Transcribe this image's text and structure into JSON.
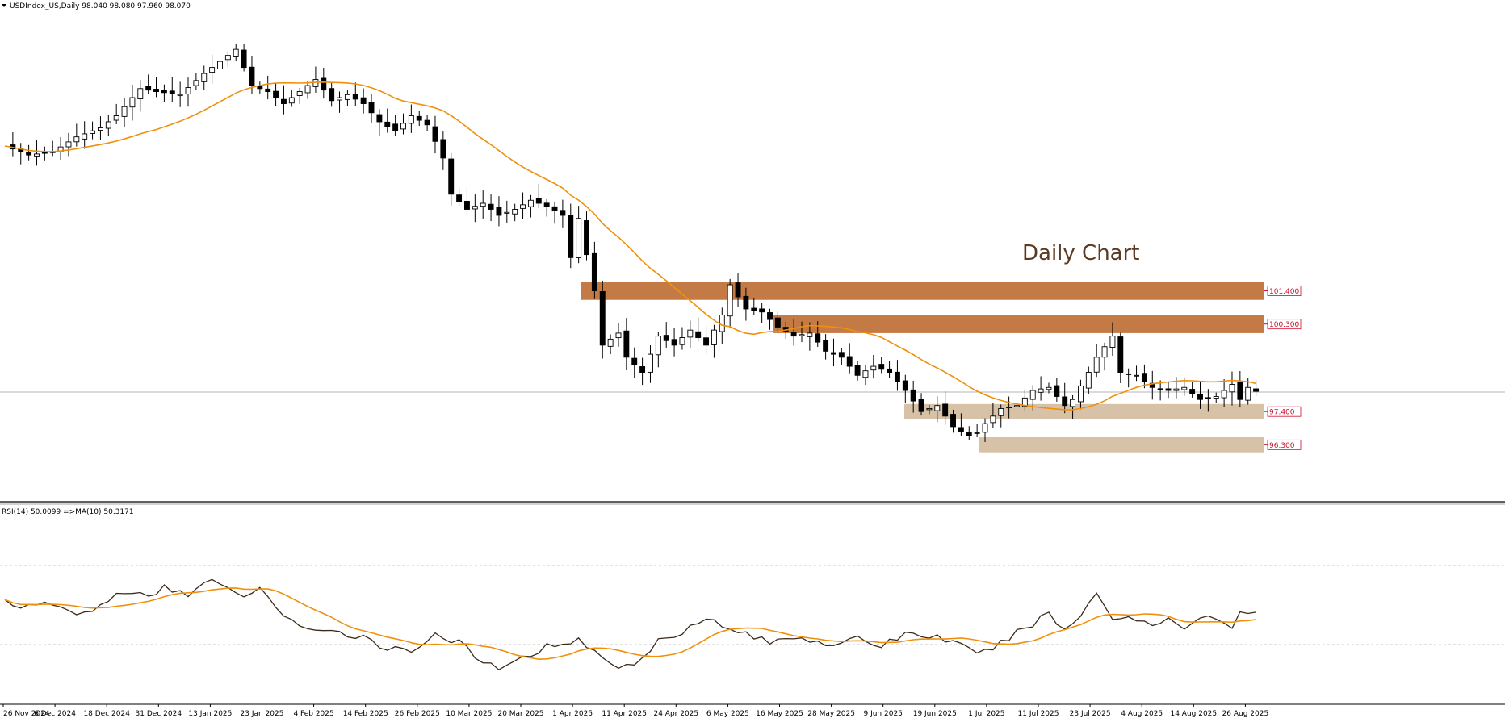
{
  "header": {
    "symbol_line": "USDIndex_US,Daily  98.040 98.080 97.960 98.070"
  },
  "annotation": {
    "text": "Daily Chart"
  },
  "rsi_header": {
    "text": "RSI(14) 50.0099  =>MA(10) 50.3171"
  },
  "colors": {
    "ma_line": "#f0900a",
    "zone_resistance": "#c47a45",
    "zone_support": "#d8c2a7",
    "level_text": "#c8102e",
    "rsi_line": "#3a2a1a"
  },
  "chart_data": [
    {
      "type": "candlestick",
      "title": "",
      "timeframe": "Daily",
      "x_tick_labels": [
        "26 Nov 2024",
        "6 Dec 2024",
        "18 Dec 2024",
        "31 Dec 2024",
        "13 Jan 2025",
        "23 Jan 2025",
        "4 Feb 2025",
        "14 Feb 2025",
        "26 Feb 2025",
        "10 Mar 2025",
        "20 Mar 2025",
        "1 Apr 2025",
        "11 Apr 2025",
        "24 Apr 2025",
        "6 May 2025",
        "16 May 2025",
        "28 May 2025",
        "9 Jun 2025",
        "19 Jun 2025",
        "1 Jul 2025",
        "11 Jul 2025",
        "23 Jul 2025",
        "4 Aug 2025",
        "14 Aug 2025",
        "26 Aug 2025"
      ],
      "ylim": [
        95.0,
        110.5
      ],
      "close_path": [
        [
          0,
          106.2
        ],
        [
          3,
          105.9
        ],
        [
          6,
          106.0
        ],
        [
          9,
          106.5
        ],
        [
          12,
          106.8
        ],
        [
          14,
          107.2
        ],
        [
          17,
          108.1
        ],
        [
          19,
          108.0
        ],
        [
          22,
          107.9
        ],
        [
          25,
          108.6
        ],
        [
          27,
          109.0
        ],
        [
          29,
          109.4
        ],
        [
          31,
          108.2
        ],
        [
          33,
          108.0
        ],
        [
          35,
          107.6
        ],
        [
          37,
          108.0
        ],
        [
          39,
          108.4
        ],
        [
          41,
          107.7
        ],
        [
          43,
          107.9
        ],
        [
          45,
          107.6
        ],
        [
          47,
          107.0
        ],
        [
          49,
          106.7
        ],
        [
          51,
          107.2
        ],
        [
          53,
          106.9
        ],
        [
          55,
          105.8
        ],
        [
          56,
          104.6
        ],
        [
          58,
          104.1
        ],
        [
          60,
          104.3
        ],
        [
          62,
          103.9
        ],
        [
          64,
          104.1
        ],
        [
          66,
          104.4
        ],
        [
          68,
          104.2
        ],
        [
          70,
          103.9
        ],
        [
          71,
          102.5
        ],
        [
          72,
          103.8
        ],
        [
          74,
          101.4
        ],
        [
          75,
          99.6
        ],
        [
          77,
          100.0
        ],
        [
          78,
          99.2
        ],
        [
          80,
          98.7
        ],
        [
          82,
          99.9
        ],
        [
          84,
          99.6
        ],
        [
          86,
          100.1
        ],
        [
          88,
          99.6
        ],
        [
          90,
          100.6
        ],
        [
          91,
          101.6
        ],
        [
          93,
          100.8
        ],
        [
          95,
          100.7
        ],
        [
          97,
          100.2
        ],
        [
          99,
          99.9
        ],
        [
          101,
          100.0
        ],
        [
          103,
          99.4
        ],
        [
          105,
          99.2
        ],
        [
          107,
          98.6
        ],
        [
          109,
          98.9
        ],
        [
          111,
          98.7
        ],
        [
          113,
          98.1
        ],
        [
          115,
          97.4
        ],
        [
          117,
          97.6
        ],
        [
          119,
          96.9
        ],
        [
          121,
          96.6
        ],
        [
          122,
          96.7
        ],
        [
          123,
          97.0
        ],
        [
          125,
          97.5
        ],
        [
          127,
          97.6
        ],
        [
          129,
          98.1
        ],
        [
          131,
          98.2
        ],
        [
          133,
          97.6
        ],
        [
          134,
          97.8
        ],
        [
          136,
          98.7
        ],
        [
          137,
          99.2
        ],
        [
          139,
          99.9
        ],
        [
          140,
          98.7
        ],
        [
          142,
          98.6
        ],
        [
          144,
          98.2
        ],
        [
          146,
          98.1
        ],
        [
          148,
          98.2
        ],
        [
          150,
          97.8
        ],
        [
          152,
          97.9
        ],
        [
          154,
          98.3
        ],
        [
          155,
          97.8
        ],
        [
          156,
          98.2
        ],
        [
          157,
          98.07
        ]
      ],
      "series": [
        {
          "name": "",
          "style": "candles"
        },
        {
          "name": "",
          "style": "moving_average"
        }
      ],
      "levels": [
        {
          "value": 101.4,
          "label": "101.400",
          "zone": [
            101.1,
            101.7
          ],
          "type": "resistance"
        },
        {
          "value": 100.3,
          "label": "100.300",
          "zone": [
            100.0,
            100.6
          ],
          "type": "resistance"
        },
        {
          "value": 97.4,
          "label": "97.400",
          "zone": [
            97.15,
            97.65
          ],
          "type": "support"
        },
        {
          "value": 96.3,
          "label": "96.300",
          "zone": [
            96.05,
            96.55
          ],
          "type": "support"
        }
      ],
      "current_price": 98.07
    },
    {
      "type": "line",
      "title": "RSI(14) 50.0099  =>MA(10) 50.3171",
      "ylim": [
        15,
        85
      ],
      "levels": [
        70,
        30
      ],
      "rsi_path": [
        [
          0,
          54
        ],
        [
          3,
          51
        ],
        [
          6,
          53
        ],
        [
          9,
          48
        ],
        [
          12,
          52
        ],
        [
          15,
          58
        ],
        [
          18,
          55
        ],
        [
          20,
          59
        ],
        [
          23,
          57
        ],
        [
          26,
          62
        ],
        [
          29,
          56
        ],
        [
          32,
          58
        ],
        [
          34,
          52
        ],
        [
          36,
          46
        ],
        [
          39,
          41
        ],
        [
          42,
          41
        ],
        [
          45,
          40
        ],
        [
          48,
          35
        ],
        [
          51,
          34
        ],
        [
          54,
          41
        ],
        [
          57,
          37
        ],
        [
          60,
          29
        ],
        [
          63,
          27
        ],
        [
          66,
          33
        ],
        [
          69,
          37
        ],
        [
          72,
          38
        ],
        [
          74,
          35
        ],
        [
          76,
          28
        ],
        [
          79,
          28
        ],
        [
          82,
          38
        ],
        [
          85,
          42
        ],
        [
          88,
          48
        ],
        [
          90,
          43
        ],
        [
          93,
          41
        ],
        [
          96,
          37
        ],
        [
          99,
          40
        ],
        [
          102,
          38
        ],
        [
          105,
          36
        ],
        [
          107,
          39
        ],
        [
          110,
          36
        ],
        [
          113,
          41
        ],
        [
          116,
          40
        ],
        [
          119,
          38
        ],
        [
          122,
          32
        ],
        [
          125,
          37
        ],
        [
          127,
          41
        ],
        [
          130,
          47
        ],
        [
          131,
          49
        ],
        [
          133,
          42
        ],
        [
          135,
          48
        ],
        [
          137,
          58
        ],
        [
          139,
          47
        ],
        [
          142,
          47
        ],
        [
          144,
          44
        ],
        [
          146,
          47
        ],
        [
          148,
          44
        ],
        [
          150,
          47
        ],
        [
          152,
          47
        ],
        [
          154,
          42
        ],
        [
          155,
          49
        ],
        [
          157,
          50
        ]
      ]
    }
  ]
}
